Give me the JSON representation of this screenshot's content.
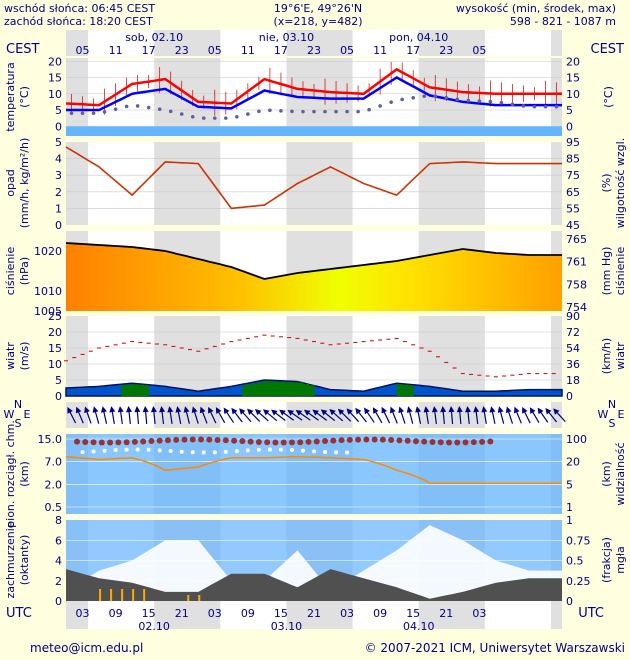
{
  "header": {
    "sunrise": "wschód słońca: 06:45 CEST",
    "sunset": "zachód słońca: 18:20 CEST",
    "coords": "19°6'E, 49°26'N",
    "grid": "(x=218, y=482)",
    "elev_label": "wysokość (min, środek, max)",
    "elev_values": "598 - 821 - 1087 m"
  },
  "time": {
    "tz_top": "CEST",
    "tz_bottom": "UTC",
    "top_days": [
      "sob, 02.10",
      "nie, 03.10",
      "pon, 04.10"
    ],
    "top_hours": [
      "05",
      "11",
      "17",
      "23",
      "05",
      "11",
      "17",
      "23",
      "05",
      "11",
      "17",
      "23",
      "05"
    ],
    "bottom_hours": [
      "03",
      "09",
      "15",
      "21",
      "03",
      "09",
      "15",
      "21",
      "03",
      "09",
      "15",
      "21",
      "03"
    ],
    "bottom_dates": [
      "02.10",
      "03.10",
      "04.10"
    ]
  },
  "panels": {
    "temperature": {
      "left": [
        "temperatura",
        "(°C)"
      ],
      "right": [
        "(°C)",
        ""
      ],
      "ticks": [
        "20",
        "15",
        "10",
        "5",
        "0"
      ]
    },
    "precip": {
      "left": [
        "opad",
        "(mm/h, kg/m²/h)"
      ],
      "right": [
        "(%)",
        "wilgotność wzgl."
      ],
      "ticks_left": [
        "5",
        "4",
        "3",
        "2",
        "1",
        "0"
      ],
      "ticks_right": [
        "95",
        "85",
        "75",
        "65",
        "55",
        "45"
      ]
    },
    "pressure": {
      "left": [
        "ciśnienie",
        "(hPa)"
      ],
      "right": [
        "(mm Hg)",
        "ciśnienie"
      ],
      "ticks_left": [
        "1020",
        "1010",
        "1005"
      ],
      "ticks_right": [
        "765",
        "761",
        "758",
        "754"
      ]
    },
    "wind": {
      "left": [
        "wiatr",
        "(m/s)"
      ],
      "right": [
        "(km/h)",
        "wiatr"
      ],
      "ticks_left": [
        "25",
        "20",
        "15",
        "10",
        "5",
        "0"
      ],
      "ticks_right": [
        "90",
        "72",
        "54",
        "36",
        "18",
        "0"
      ]
    },
    "wind_dir": {
      "left_glyphs": [
        "N",
        "W",
        "E",
        "S"
      ],
      "right_glyphs": [
        "N",
        "W",
        "E",
        "S"
      ]
    },
    "clouds": {
      "left": [
        "pion. rozciągł. chm.",
        "(km)"
      ],
      "right": [
        "(km)",
        "widzialność"
      ],
      "ticks_left": [
        "15.0",
        "7.0",
        "2.0",
        "0.5"
      ],
      "ticks_right": [
        "100",
        "20",
        "5",
        "1"
      ]
    },
    "fog": {
      "left": [
        "zachmurzenie",
        "(oktanty)"
      ],
      "right": [
        "(frakcja)",
        "mgła"
      ],
      "ticks_left": [
        "8",
        "6",
        "4",
        "2",
        "0"
      ],
      "ticks_right": [
        "1",
        "0.75",
        "0.5",
        "0.25",
        "0"
      ]
    }
  },
  "footer": {
    "email": "meteo@icm.edu.pl",
    "copyright": "© 2007-2021 ICM, Uniwersytet Warszawski"
  },
  "colors": {
    "background": "#fffedf",
    "panel": "#ffffff",
    "night": "#e0e0e0",
    "label": "#000080",
    "temp": "#ff0000",
    "dew": "#0000ff",
    "humidity": "#cc3300",
    "pressure": "#000000",
    "wind_gust": "#cc0000",
    "wind_fill": "#0055cc",
    "wind_fill_strong": "#007700",
    "sky": "#64b4ff",
    "visibility": "#ff8800",
    "cloud_dots": "#993333"
  },
  "chart_data": [
    {
      "type": "line",
      "title": "temperatura",
      "ylabel": "(°C)",
      "x_hours_utc": [
        0,
        6,
        12,
        18,
        24,
        30,
        36,
        42,
        48,
        54,
        60,
        66,
        72,
        78,
        84
      ],
      "ylim": [
        -3,
        21
      ],
      "series": [
        {
          "values": [
            7,
            6.5,
            13,
            14.5,
            7.5,
            7,
            14.5,
            11.5,
            10.5,
            10,
            17.5,
            12,
            10.5,
            10,
            10
          ]
        },
        {
          "values": [
            5,
            5,
            10,
            11.5,
            6,
            5.5,
            11,
            9,
            8.5,
            8.5,
            15,
            9.5,
            7.5,
            6.5,
            6.5
          ]
        },
        {
          "values": [
            4,
            4,
            6.5,
            5,
            2.5,
            2.5,
            5,
            4.5,
            4.5,
            4.5,
            8,
            9.5,
            8,
            7.5,
            6
          ]
        }
      ]
    },
    {
      "type": "line",
      "title": "opad / wilgotność wzgl.",
      "ylim_left": [
        0,
        5
      ],
      "ylim_right": [
        45,
        95
      ],
      "x_hours_utc": [
        0,
        6,
        12,
        18,
        24,
        30,
        36,
        42,
        48,
        54,
        60,
        66,
        72,
        78,
        84
      ],
      "series": [
        {
          "name": "wilgotność wzgl.",
          "values": [
            92,
            80,
            63,
            83,
            82,
            55,
            57,
            70,
            80,
            70,
            63,
            82,
            83,
            82,
            82
          ]
        }
      ]
    },
    {
      "type": "line",
      "title": "ciśnienie",
      "ylabel": "(hPa)",
      "ylim": [
        1005,
        1025
      ],
      "x_hours_utc": [
        0,
        6,
        12,
        18,
        24,
        30,
        36,
        42,
        48,
        54,
        60,
        66,
        72,
        78,
        84
      ],
      "series": [
        {
          "values": [
            1022,
            1021.5,
            1021,
            1020,
            1018,
            1016,
            1013,
            1014.5,
            1015.5,
            1016.5,
            1017.5,
            1019,
            1020.5,
            1019.5,
            1019
          ]
        }
      ]
    },
    {
      "type": "area",
      "title": "wiatr",
      "ylabel": "(m/s)",
      "ylim": [
        0,
        25
      ],
      "x_hours_utc": [
        0,
        6,
        12,
        18,
        24,
        30,
        36,
        42,
        48,
        54,
        60,
        66,
        72,
        78,
        84
      ],
      "series": [
        {
          "values": [
            2.5,
            3,
            4,
            3,
            1.5,
            3,
            5,
            4.5,
            2,
            1.5,
            4,
            3,
            1.5,
            1.5,
            2
          ]
        },
        {
          "values": [
            11,
            15,
            17,
            16,
            14,
            17,
            19,
            18,
            16,
            17,
            18,
            14,
            7,
            6,
            7
          ]
        }
      ]
    },
    {
      "type": "line",
      "title": "widzialność",
      "ylabel": "(km)",
      "x_hours_utc": [
        0,
        6,
        12,
        18,
        24,
        30,
        36,
        42,
        48,
        54,
        60,
        66,
        72,
        78,
        84
      ],
      "series": [
        {
          "values": [
            30,
            25,
            28,
            12,
            15,
            28,
            28,
            30,
            28,
            25,
            12,
            5,
            5,
            5,
            5
          ]
        }
      ]
    },
    {
      "type": "area",
      "title": "zachmurzenie",
      "ylabel": "(oktanty)",
      "ylim": [
        0,
        8
      ],
      "x_hours_utc": [
        0,
        6,
        12,
        18,
        24,
        30,
        36,
        42,
        48,
        54,
        60,
        66,
        72,
        78,
        84
      ],
      "series": [
        {
          "values": [
            7,
            5,
            4,
            2,
            2,
            6,
            6,
            3,
            7,
            5,
            3,
            0.5,
            2,
            4,
            5
          ]
        }
      ]
    }
  ]
}
